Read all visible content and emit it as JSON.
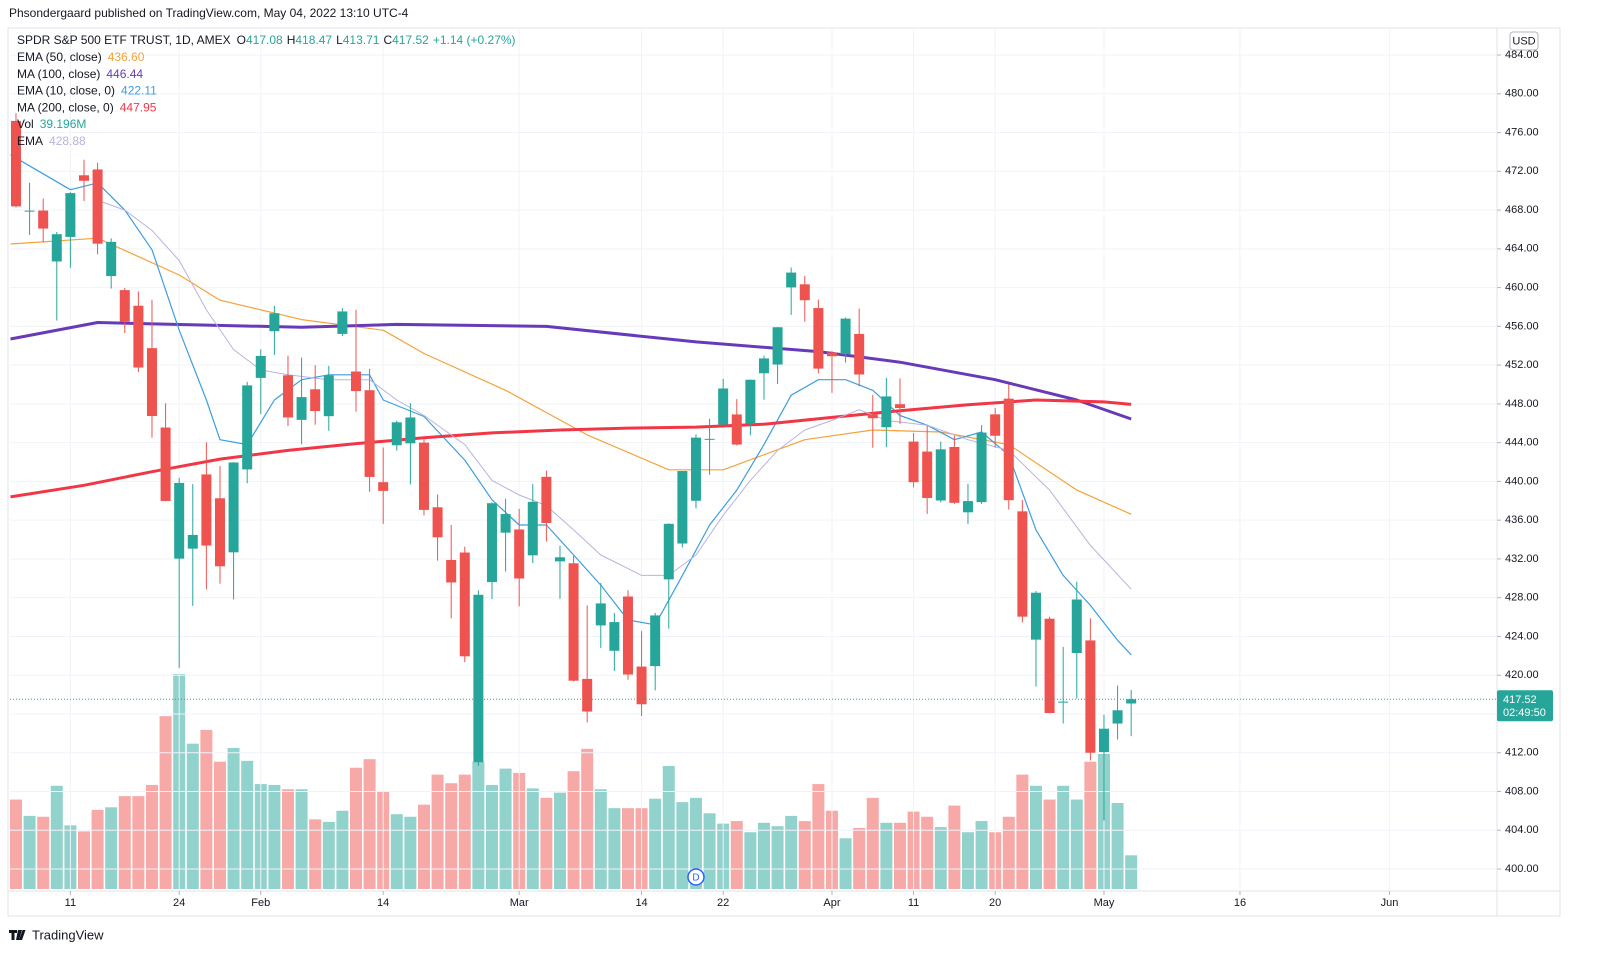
{
  "header": {
    "publisher": "Phsondergaard published on TradingView.com, May 04, 2022 13:10 UTC-4"
  },
  "chart_data": {
    "type": "candlestick",
    "symbol": "SPDR S&P 500 ETF TRUST, 1D, AMEX",
    "quote": [
      {
        "label": "O",
        "value": "417.08"
      },
      {
        "label": "H",
        "value": "418.47"
      },
      {
        "label": "L",
        "value": "413.71"
      },
      {
        "label": "C",
        "value": "417.52"
      }
    ],
    "change": "+1.14 (+0.27%)",
    "currency": "USD",
    "up_color": "#26a69a",
    "down_color": "#ef5350",
    "open": [
      477.2,
      467.89,
      467.95,
      462.7,
      465.23,
      471.59,
      472.19,
      461.19,
      459.74,
      458.13,
      453.75,
      445.56,
      432.03,
      433.06,
      440.72,
      438.26,
      432.68,
      441.24,
      450.68,
      455.5,
      450.95,
      446.35,
      449.51,
      446.73,
      455.22,
      451.34,
      449.41,
      439.92,
      443.73,
      443.93,
      444.0,
      437.33,
      431.89,
      432.66,
      411.02,
      429.61,
      434.71,
      435.04,
      432.37,
      440.47,
      431.75,
      431.55,
      419.62,
      425.14,
      422.52,
      428.12,
      420.89,
      420.94,
      429.89,
      433.59,
      438.0,
      444.34,
      445.86,
      446.91,
      445.94,
      451.16,
      452.06,
      460.02,
      460.34,
      457.89,
      453.31,
      453.13,
      455.22,
      446.89,
      445.59,
      447.97,
      444.11,
      443.08,
      438.03,
      443.55,
      436.81,
      437.86,
      446.92,
      448.54,
      436.91,
      423.67,
      425.83,
      417.24,
      422.29,
      423.59,
      412.07,
      415.01,
      417.08
    ],
    "high": [
      477.98,
      470.82,
      469.2,
      465.74,
      469.85,
      473.2,
      472.88,
      465.09,
      459.96,
      459.61,
      458.74,
      448.06,
      440.38,
      439.72,
      444.04,
      441.59,
      442.0,
      450.28,
      453.63,
      458.12,
      452.97,
      452.78,
      451.99,
      451.92,
      457.88,
      457.71,
      451.61,
      443.5,
      446.28,
      448.06,
      444.34,
      438.66,
      435.5,
      433.26,
      428.76,
      437.84,
      438.2,
      437.17,
      439.72,
      441.11,
      433.37,
      432.3,
      427.21,
      429.51,
      426.43,
      428.77,
      424.55,
      426.43,
      435.68,
      441.07,
      444.86,
      446.46,
      450.58,
      448.49,
      450.5,
      452.98,
      455.91,
      462.07,
      461.2,
      458.76,
      453.46,
      456.91,
      457.83,
      448.93,
      450.69,
      450.63,
      445.0,
      445.75,
      444.11,
      444.73,
      439.75,
      445.8,
      447.57,
      450.01,
      438.08,
      428.69,
      426.04,
      422.92,
      429.64,
      425.87,
      415.92,
      418.93,
      418.47
    ],
    "low": [
      468.28,
      465.43,
      464.65,
      456.6,
      462.05,
      468.94,
      463.44,
      459.9,
      455.31,
      451.29,
      444.5,
      437.95,
      420.76,
      427.15,
      428.86,
      429.45,
      427.82,
      439.81,
      446.94,
      453.05,
      445.71,
      443.83,
      445.85,
      445.22,
      455.0,
      447.2,
      438.94,
      435.61,
      443.18,
      439.69,
      436.5,
      431.82,
      425.86,
      421.35,
      410.64,
      427.86,
      430.7,
      427.11,
      431.57,
      433.8,
      427.88,
      419.36,
      415.12,
      422.82,
      420.44,
      419.53,
      415.79,
      418.44,
      424.8,
      433.19,
      437.22,
      440.68,
      445.86,
      443.71,
      444.76,
      448.43,
      450.06,
      457.18,
      456.47,
      451.16,
      449.14,
      452.26,
      449.82,
      443.47,
      443.53,
      445.94,
      439.39,
      436.65,
      437.84,
      437.68,
      435.61,
      437.68,
      443.48,
      437.1,
      425.44,
      418.84,
      416.07,
      415.01,
      417.6,
      411.21,
      405.02,
      413.36,
      413.71
    ],
    "close": [
      468.38,
      467.94,
      466.09,
      465.51,
      469.75,
      471.02,
      464.53,
      464.72,
      456.49,
      451.75,
      446.75,
      437.98,
      439.84,
      434.47,
      433.38,
      431.24,
      441.95,
      449.91,
      452.95,
      457.35,
      446.6,
      448.7,
      447.26,
      450.94,
      457.54,
      449.32,
      440.46,
      439.02,
      446.1,
      446.6,
      437.06,
      434.23,
      429.57,
      421.95,
      428.3,
      437.75,
      436.63,
      429.98,
      437.89,
      435.71,
      432.17,
      419.43,
      416.25,
      427.41,
      425.48,
      420.07,
      417.0,
      426.17,
      435.62,
      441.07,
      444.52,
      444.39,
      449.59,
      443.8,
      450.49,
      452.69,
      455.91,
      461.55,
      458.7,
      451.64,
      452.92,
      456.8,
      451.03,
      446.52,
      448.77,
      447.57,
      439.92,
      438.29,
      443.31,
      437.79,
      437.97,
      445.04,
      444.71,
      438.06,
      426.04,
      428.51,
      416.1,
      417.27,
      427.81,
      412.0,
      414.48,
      416.38,
      417.52
    ],
    "volume": {
      "name": "Vol",
      "value_label": "39.196M",
      "values": [
        104,
        85,
        84,
        120,
        74,
        67,
        92,
        95,
        108,
        108,
        121,
        201,
        250,
        169,
        185,
        148,
        164,
        149,
        122,
        121,
        116,
        116,
        81,
        78,
        91,
        141,
        151,
        114,
        87,
        84,
        98,
        133,
        123,
        133,
        148,
        121,
        140,
        135,
        117,
        106,
        112,
        137,
        163,
        116,
        94,
        94,
        94,
        105,
        143,
        101,
        106,
        88,
        76,
        79,
        66,
        77,
        73,
        85,
        79,
        122,
        91,
        59,
        71,
        106,
        77,
        77,
        90,
        84,
        72,
        97,
        66,
        79,
        66,
        84,
        133,
        120,
        104,
        120,
        104,
        148,
        157,
        100,
        39.196
      ]
    },
    "lines": [
      {
        "name": "EMA (50, close)",
        "value_label": "436.60",
        "color": "#f7a13a",
        "width": 1.2,
        "x": [
          -0.4,
          6,
          12,
          15,
          21,
          27,
          30,
          36,
          42,
          48,
          52,
          58,
          63,
          68,
          73,
          78,
          82
        ],
        "values": [
          464.5,
          465.1,
          461.3,
          458.7,
          456.7,
          455.6,
          453.2,
          449.4,
          444.8,
          441.2,
          441.2,
          444.3,
          445.3,
          445.1,
          443.8,
          439.1,
          436.6
        ]
      },
      {
        "name": "MA (100, close)",
        "value_label": "446.44",
        "color": "#673ab7",
        "width": 3,
        "x": [
          -0.4,
          6,
          21,
          28,
          39,
          50,
          59,
          65,
          72,
          78,
          82
        ],
        "values": [
          454.7,
          456.4,
          455.9,
          456.2,
          456,
          454.4,
          453.4,
          452.3,
          450.5,
          448.4,
          446.44
        ]
      },
      {
        "name": "EMA (10, close, 0)",
        "value_label": "422.11",
        "color": "#3c9ee0",
        "width": 1.2,
        "x": [
          -0.4,
          4,
          6,
          8,
          10,
          12,
          14,
          15,
          17,
          19,
          21,
          23,
          26,
          27,
          30,
          33,
          35,
          37,
          39,
          41,
          43,
          45,
          47,
          49,
          51,
          53,
          55,
          57,
          59,
          61,
          63,
          65,
          67,
          69,
          71,
          73,
          75,
          77,
          79,
          81,
          82
        ],
        "values": [
          473.7,
          470.1,
          470.8,
          468,
          463.9,
          455.6,
          448.4,
          444.3,
          443.8,
          448.4,
          450.5,
          451,
          451,
          448.4,
          446.7,
          442.2,
          438.1,
          435.5,
          435.5,
          432.4,
          429.3,
          425.7,
          425.2,
          430.3,
          435.5,
          439.1,
          443.8,
          448.9,
          450.5,
          450.5,
          449.4,
          446.8,
          445.8,
          444.3,
          445.1,
          442.7,
          435,
          430.3,
          427.2,
          423.6,
          422.11
        ]
      },
      {
        "name": "MA (200, close, 0)",
        "value_label": "447.95",
        "color": "#f23645",
        "width": 3,
        "x": [
          -0.4,
          5,
          10,
          15,
          20,
          25,
          30,
          35,
          40,
          45,
          50,
          55,
          60,
          65,
          70,
          75,
          80,
          82
        ],
        "values": [
          438.4,
          439.6,
          441,
          442.3,
          443.2,
          443.9,
          444.5,
          445,
          445.3,
          445.5,
          445.6,
          445.9,
          446.6,
          447.3,
          447.9,
          448.4,
          448.2,
          447.95
        ]
      },
      {
        "name": "EMA",
        "value_label": "428.88",
        "color": "#b7b3e0",
        "width": 1,
        "x": [
          6,
          8,
          10,
          12,
          14,
          16,
          18,
          20,
          23,
          26,
          28,
          30,
          33,
          35,
          37,
          39,
          41,
          43,
          46,
          48,
          50,
          52,
          54,
          56,
          58,
          60,
          62,
          64,
          67,
          70,
          73,
          76,
          79,
          82
        ],
        "values": [
          469,
          468,
          465.9,
          462.8,
          457.7,
          453.6,
          451.5,
          451,
          450.5,
          450.5,
          448.4,
          446.8,
          443.8,
          440.1,
          438.6,
          437.5,
          435,
          432.4,
          430.3,
          430.3,
          432.4,
          436.5,
          440.1,
          443.2,
          445.3,
          446.3,
          447.4,
          446.3,
          445.8,
          444.3,
          443.2,
          439.1,
          433.4,
          428.88
        ]
      }
    ],
    "xlim": [
      -0.44,
      108.9
    ],
    "xticks": [
      {
        "value": 4,
        "label": "11"
      },
      {
        "value": 12,
        "label": "24"
      },
      {
        "value": 18,
        "label": "Feb"
      },
      {
        "value": 27,
        "label": "14"
      },
      {
        "value": 37,
        "label": "Mar"
      },
      {
        "value": 46,
        "label": "14"
      },
      {
        "value": 52,
        "label": "22"
      },
      {
        "value": 60,
        "label": "Apr"
      },
      {
        "value": 66,
        "label": "11"
      },
      {
        "value": 72,
        "label": "20"
      },
      {
        "value": 80,
        "label": "May"
      },
      {
        "value": 90,
        "label": "16"
      },
      {
        "value": 101,
        "label": "Jun"
      }
    ],
    "ylim": [
      397.73,
      486.79
    ],
    "yticks": [
      {
        "value": 400,
        "label": "400.00"
      },
      {
        "value": 404,
        "label": "404.00"
      },
      {
        "value": 408,
        "label": "408.00"
      },
      {
        "value": 412,
        "label": "412.00"
      },
      {
        "value": 416,
        "label": "416.00"
      },
      {
        "value": 420,
        "label": "420.00"
      },
      {
        "value": 424,
        "label": "424.00"
      },
      {
        "value": 428,
        "label": "428.00"
      },
      {
        "value": 432,
        "label": "432.00"
      },
      {
        "value": 436,
        "label": "436.00"
      },
      {
        "value": 440,
        "label": "440.00"
      },
      {
        "value": 444,
        "label": "444.00"
      },
      {
        "value": 448,
        "label": "448.00"
      },
      {
        "value": 452,
        "label": "452.00"
      },
      {
        "value": 456,
        "label": "456.00"
      },
      {
        "value": 460,
        "label": "460.00"
      },
      {
        "value": 464,
        "label": "464.00"
      },
      {
        "value": 468,
        "label": "468.00"
      },
      {
        "value": 472,
        "label": "472.00"
      },
      {
        "value": 476,
        "label": "476.00"
      },
      {
        "value": 480,
        "label": "480.00"
      },
      {
        "value": 484,
        "label": "484.00"
      }
    ],
    "grid": true,
    "price_line": {
      "value": 417.52,
      "countdown": "02:49:50"
    },
    "dividend_marker": "D"
  },
  "footer": {
    "brand": "TradingView"
  }
}
